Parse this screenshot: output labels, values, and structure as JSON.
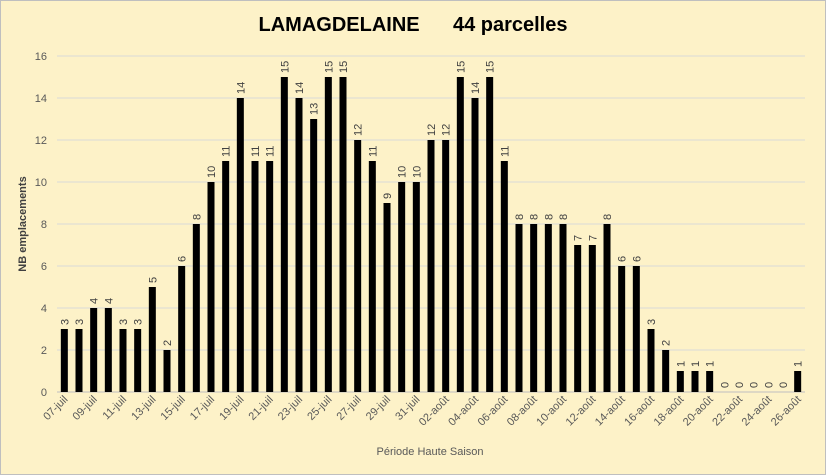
{
  "chart_data": {
    "type": "bar",
    "title": "LAMAGDELAINE      44 parcelles",
    "xlabel": "Période Haute Saison",
    "ylabel": "NB emplacements",
    "ylim": [
      0,
      16
    ],
    "yticks": [
      0,
      2,
      4,
      6,
      8,
      10,
      12,
      14,
      16
    ],
    "grid": true,
    "legend": "none",
    "bar_color": "#000000",
    "categories": [
      "07-juil",
      "08-juil",
      "09-juil",
      "10-juil",
      "11-juil",
      "12-juil",
      "13-juil",
      "14-juil",
      "15-juil",
      "16-juil",
      "17-juil",
      "18-juil",
      "19-juil",
      "20-juil",
      "21-juil",
      "22-juil",
      "23-juil",
      "24-juil",
      "25-juil",
      "26-juil",
      "27-juil",
      "28-juil",
      "29-juil",
      "30-juil",
      "31-juil",
      "01-août",
      "02-août",
      "03-août",
      "04-août",
      "05-août",
      "06-août",
      "07-août",
      "08-août",
      "09-août",
      "10-août",
      "11-août",
      "12-août",
      "13-août",
      "14-août",
      "15-août",
      "16-août",
      "17-août",
      "18-août",
      "19-août",
      "20-août",
      "21-août",
      "22-août",
      "23-août",
      "24-août",
      "25-août",
      "26-août"
    ],
    "tick_labels": [
      "07-juil",
      "09-juil",
      "11-juil",
      "13-juil",
      "15-juil",
      "17-juil",
      "19-juil",
      "21-juil",
      "23-juil",
      "25-juil",
      "27-juil",
      "29-juil",
      "31-juil",
      "02-août",
      "04-août",
      "06-août",
      "08-août",
      "10-août",
      "12-août",
      "14-août",
      "16-août",
      "18-août",
      "20-août",
      "22-août",
      "24-août",
      "26-août"
    ],
    "values": [
      3,
      3,
      4,
      4,
      3,
      3,
      5,
      2,
      6,
      8,
      10,
      11,
      14,
      11,
      11,
      15,
      14,
      13,
      15,
      15,
      12,
      11,
      9,
      10,
      10,
      12,
      12,
      15,
      14,
      15,
      11,
      8,
      8,
      8,
      8,
      7,
      7,
      8,
      6,
      6,
      3,
      2,
      1,
      1,
      1,
      0,
      0,
      0,
      0,
      0,
      1
    ]
  }
}
